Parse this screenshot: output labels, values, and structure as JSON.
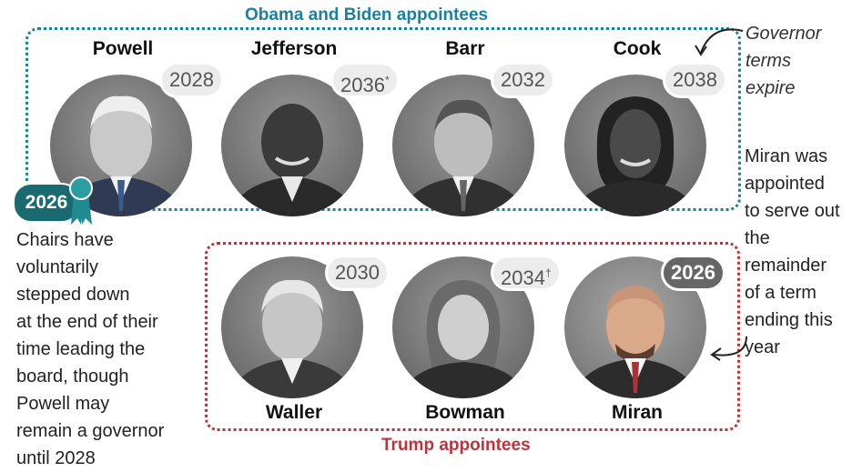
{
  "groups": {
    "obama_biden": {
      "title": "Obama and Biden appointees",
      "color": "#1a7fa3"
    },
    "trump": {
      "title": "Trump appointees",
      "color": "#c0323a"
    }
  },
  "people": [
    {
      "name": "Powell",
      "term_expires": "2028"
    },
    {
      "name": "Jefferson",
      "term_expires": "2036",
      "mark": "*"
    },
    {
      "name": "Barr",
      "term_expires": "2032"
    },
    {
      "name": "Cook",
      "term_expires": "2038"
    },
    {
      "name": "Waller",
      "term_expires": "2030"
    },
    {
      "name": "Bowman",
      "term_expires": "2034",
      "mark": "†"
    },
    {
      "name": "Miran",
      "term_expires": "2026"
    }
  ],
  "chair": {
    "year": "2026",
    "icon": "ribbon-icon",
    "color": "#1a6a72"
  },
  "notes": {
    "governor_terms": [
      "Governor",
      "terms",
      "expire"
    ],
    "miran": [
      "Miran was",
      "appointed",
      "to serve out",
      "the",
      "remainder",
      "of a term",
      "ending this",
      "year"
    ],
    "chairs": [
      "Chairs have",
      "voluntarily",
      "stepped down",
      "at the end of their",
      "time leading the",
      "board, though",
      "Powell may",
      "remain a governor",
      "until 2028"
    ]
  }
}
